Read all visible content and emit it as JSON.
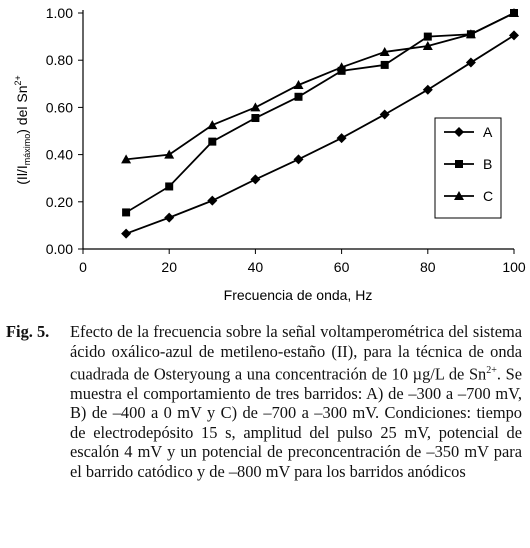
{
  "chart_data": {
    "type": "line",
    "xlabel": "Frecuencia de onda, Hz",
    "ylabel": {
      "prefix": "(Il/I",
      "sub": "máximo",
      "mid": ") del Sn",
      "sup": "2+"
    },
    "xlim": [
      0,
      100
    ],
    "ylim": [
      0,
      1.0
    ],
    "xticks": [
      "0",
      "20",
      "40",
      "60",
      "80",
      "100"
    ],
    "yticks": [
      "0.00",
      "0.20",
      "0.40",
      "0.60",
      "0.80",
      "1.00"
    ],
    "grid": false,
    "legend_position": "right",
    "x": [
      10,
      20,
      30,
      40,
      50,
      60,
      70,
      80,
      90,
      100
    ],
    "series": [
      {
        "name": "A",
        "marker": "diamond",
        "values": [
          0.065,
          0.133,
          0.205,
          0.295,
          0.38,
          0.47,
          0.57,
          0.675,
          0.79,
          0.905
        ]
      },
      {
        "name": "B",
        "marker": "square",
        "values": [
          0.155,
          0.265,
          0.455,
          0.555,
          0.645,
          0.755,
          0.78,
          0.9,
          0.91,
          1.0
        ]
      },
      {
        "name": "C",
        "marker": "triangle",
        "values": [
          0.38,
          0.4,
          0.525,
          0.6,
          0.695,
          0.77,
          0.835,
          0.86,
          0.91,
          1.0
        ]
      }
    ]
  },
  "caption": {
    "label": "Fig. 5.",
    "text_before_sup": "Efecto de la frecuencia sobre la señal voltamperométrica del sistema ácido oxálico-azul de metileno-estaño (II), para la técnica de onda cuadrada de Osteryoung a una concentración de 10 µg/L de Sn",
    "sup": "2+",
    "text_after_sup": ". Se muestra el comportamiento de tres barridos: A) de –300 a –700 mV, B) de –400 a 0 mV y C) de –700 a –300 mV. Condiciones: tiempo de electrodepósito 15 s, amplitud del pulso 25 mV, potencial de escalón 4 mV y un potencial de preconcentración de –350 mV para el barrido catódico y de –800 mV para los barridos anódicos"
  }
}
